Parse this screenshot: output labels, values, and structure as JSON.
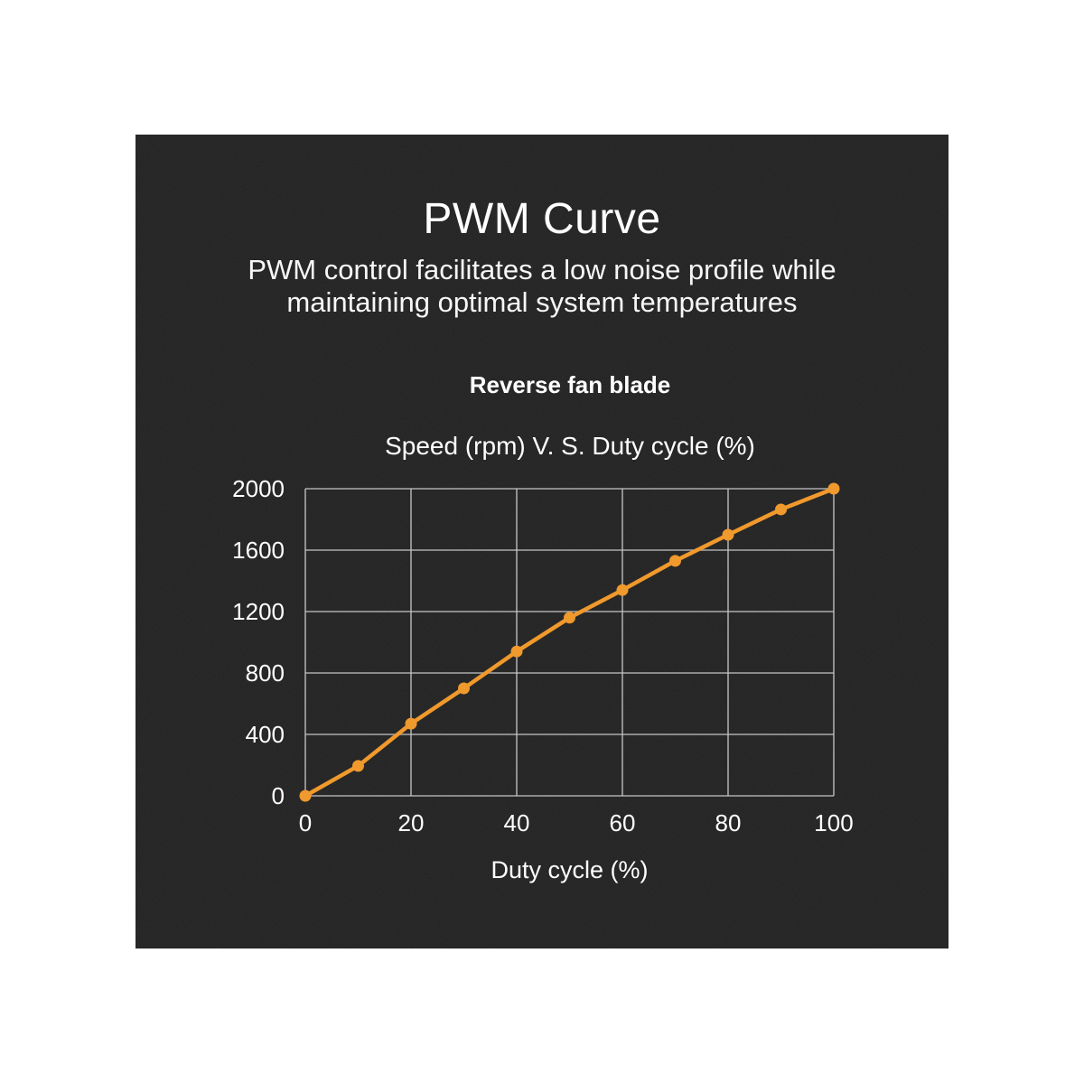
{
  "page": {
    "background": "#ffffff"
  },
  "card": {
    "background": "#212121",
    "title": "PWM Curve",
    "subtitle_lines": [
      "PWM control facilitates a low noise profile while",
      "maintaining optimal system temperatures"
    ],
    "series_label": "Reverse fan blade"
  },
  "chart_data": {
    "type": "line",
    "title": "Speed (rpm) V. S. Duty cycle (%)",
    "xlabel": "Duty cycle (%)",
    "series": [
      {
        "name": "Reverse fan blade",
        "x": [
          0,
          10,
          20,
          30,
          40,
          50,
          60,
          70,
          80,
          90,
          100
        ],
        "values": [
          0,
          195,
          470,
          700,
          940,
          1160,
          1340,
          1530,
          1700,
          1865,
          2000
        ]
      }
    ],
    "xlim": [
      0,
      100
    ],
    "ylim": [
      0,
      2000
    ],
    "x_ticks": [
      0,
      20,
      40,
      60,
      80,
      100
    ],
    "y_ticks": [
      0,
      400,
      800,
      1200,
      1600,
      2000
    ],
    "grid": true,
    "legend_position": "above-chart",
    "colors": {
      "line": "#F0992D",
      "marker": "#F0992D",
      "grid": "#C2C2C2",
      "text": "#FFFFFF"
    }
  }
}
